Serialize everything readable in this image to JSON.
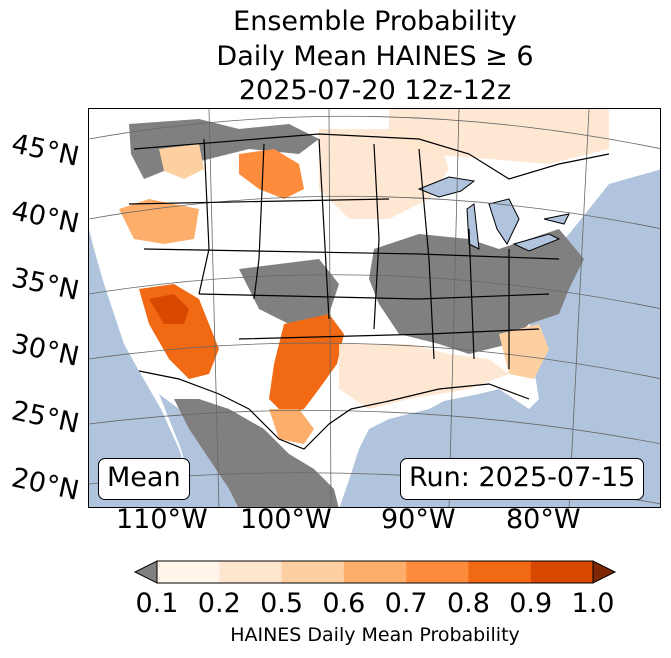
{
  "title": {
    "line1": "Ensemble Probability",
    "line2": "Daily Mean HAINES ≥ 6",
    "line3": "2025-07-20 12z-12z"
  },
  "map": {
    "projection": "lambert-conformal",
    "region": "CONUS",
    "ocean_color": "#b0c4de",
    "land_color": "#ffffff",
    "no_data_color": "#808080",
    "lat_labels": [
      "45°N",
      "40°N",
      "35°N",
      "30°N",
      "25°N",
      "20°N"
    ],
    "lon_labels": [
      "110°W",
      "100°W",
      "90°W",
      "80°W"
    ]
  },
  "boxes": {
    "stat": "Mean",
    "run": "Run: 2025-07-15"
  },
  "colorbar": {
    "label": "HAINES Daily Mean Probability",
    "ticks": [
      "0.1",
      "0.2",
      "0.5",
      "0.6",
      "0.7",
      "0.8",
      "0.9",
      "1.0"
    ],
    "under_color": "#808080",
    "over_color": "#7f2704",
    "colors": [
      "#fff5eb",
      "#fee6ce",
      "#fdd0a2",
      "#fdae6b",
      "#fd8d3c",
      "#f16913",
      "#d94801"
    ]
  }
}
